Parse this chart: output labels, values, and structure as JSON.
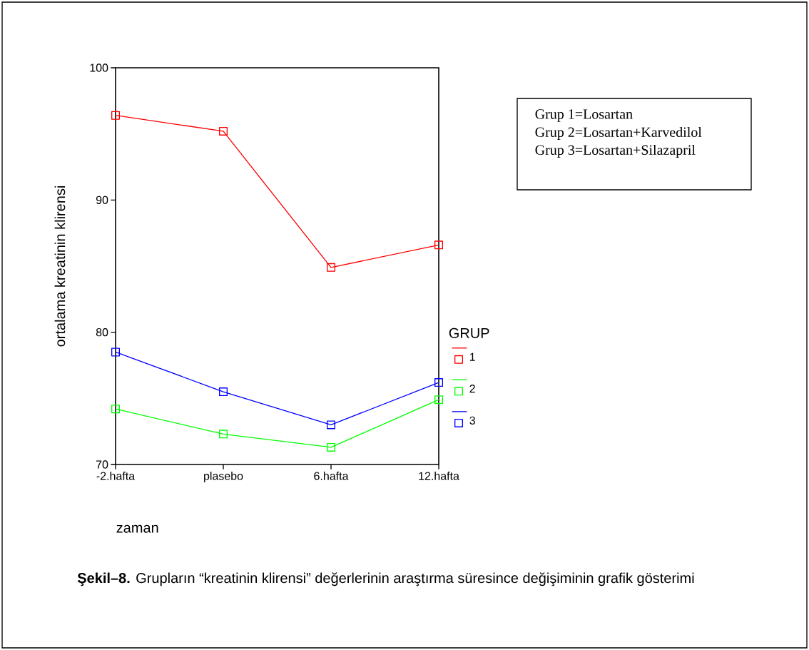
{
  "chart_data": {
    "type": "line",
    "xlabel": "zaman",
    "ylabel": "ortalama kreatinin klirensi",
    "legend_title": "GRUP",
    "categories": [
      "-2.hafta",
      "plasebo",
      "6.hafta",
      "12.hafta"
    ],
    "series": [
      {
        "name": "1",
        "color": "#ff0000",
        "values": [
          96.4,
          95.2,
          84.9,
          86.6
        ]
      },
      {
        "name": "2",
        "color": "#00ff00",
        "values": [
          74.2,
          72.3,
          71.3,
          74.9
        ]
      },
      {
        "name": "3",
        "color": "#0000ff",
        "values": [
          78.5,
          75.5,
          73.0,
          76.2
        ]
      }
    ],
    "ylim": [
      70,
      100
    ],
    "yticks": [
      70,
      80,
      90,
      100
    ],
    "marker": "square",
    "line_style": "solid",
    "legend": "right",
    "annotations": [
      "Grup 1=Losartan",
      "Grup 2=Losartan+Karvedilol",
      "Grup 3=Losartan+Silazapril",
      "**Şekil–8.** Grupların “kreatinin klirensi” değerlerinin araştırma süresince değişiminin grafik gösterimi"
    ]
  }
}
